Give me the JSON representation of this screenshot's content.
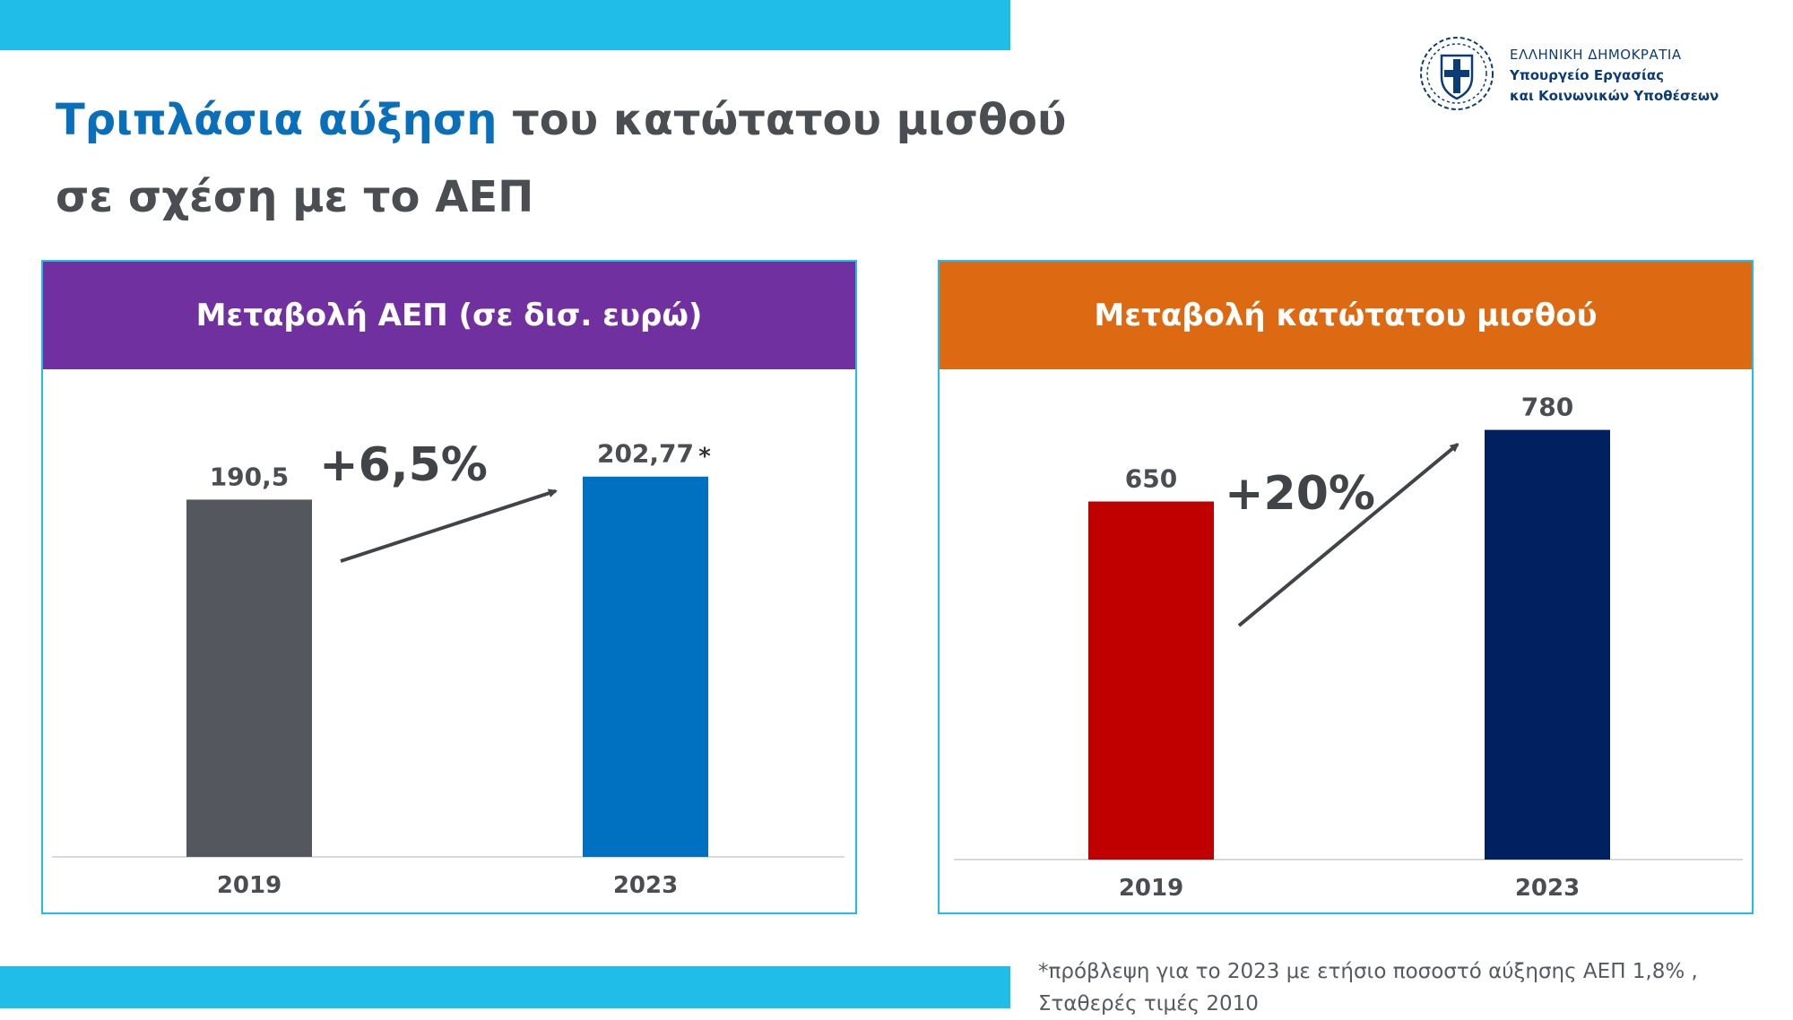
{
  "title": {
    "highlight": "Τριπλάσια αύξηση",
    "rest": " του κατώτατου μισθού",
    "line2": "σε σχέση με το ΑΕΠ"
  },
  "logo": {
    "icon": "greek-coat-of-arms",
    "line1": "ΕΛΛΗΝΙΚΗ ΔΗΜΟΚΡΑΤΙΑ",
    "line2": "Υπουργείο Εργασίας",
    "line3": "και Κοινωνικών Υποθέσεων"
  },
  "footnote": {
    "line1": "*πρόβλεψη για το 2023 με ετήσιο ποσοστό αύξησης ΑΕΠ 1,8% ,",
    "line2": "Σταθερές τιμές 2010"
  },
  "colors": {
    "top_bar": "#1fbde7",
    "gdp_header": "#7030a0",
    "wage_header": "#dd6a13"
  },
  "chart_data": [
    {
      "type": "bar",
      "title": "Μεταβολή ΑΕΠ (σε δισ. ευρώ)",
      "categories": [
        "2019",
        "2023"
      ],
      "values": [
        190.5,
        202.77
      ],
      "value_labels": [
        "190,5",
        "202,77"
      ],
      "value_marks": [
        "",
        "*"
      ],
      "bar_colors": [
        "#54585e",
        "#0070c0"
      ],
      "change_label": "+6,5%",
      "ylim": [
        0,
        260
      ]
    },
    {
      "type": "bar",
      "title": "Μεταβολή κατώτατου μισθού",
      "categories": [
        "2019",
        "2023"
      ],
      "values": [
        650,
        780
      ],
      "value_labels": [
        "650",
        "780"
      ],
      "value_marks": [
        "",
        ""
      ],
      "bar_colors": [
        "#c00000",
        "#002060"
      ],
      "change_label": "+20%",
      "ylim": [
        0,
        890
      ]
    }
  ]
}
